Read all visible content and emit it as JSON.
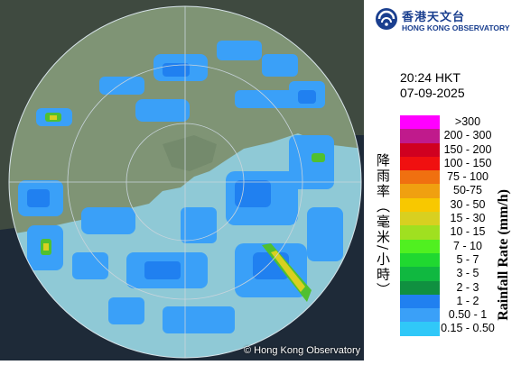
{
  "organization": {
    "name_cn": "香港天文台",
    "name_en": "HONG KONG OBSERVATORY"
  },
  "timestamp": {
    "time": "20:24 HKT",
    "date": "07-09-2025"
  },
  "legend": {
    "title_cn": "降雨率（毫米/小時）",
    "title_en": "Rainfall Rate (mm/h)",
    "bins": [
      {
        "label": ">300",
        "color": "#ff00ff"
      },
      {
        "label": "200 - 300",
        "color": "#c01a8c"
      },
      {
        "label": "150 - 200",
        "color": "#d00020"
      },
      {
        "label": "100 - 150",
        "color": "#f01010"
      },
      {
        "label": "75 - 100",
        "color": "#f07010"
      },
      {
        "label": "50-75",
        "color": "#f0a010"
      },
      {
        "label": "30 - 50",
        "color": "#f8c800"
      },
      {
        "label": "15 - 30",
        "color": "#d8d020"
      },
      {
        "label": "10 - 15",
        "color": "#a0e020"
      },
      {
        "label": "7 - 10",
        "color": "#50f020"
      },
      {
        "label": "5 - 7",
        "color": "#20d830"
      },
      {
        "label": "3 - 5",
        "color": "#10b840"
      },
      {
        "label": "2 - 3",
        "color": "#109040"
      },
      {
        "label": "1 - 2",
        "color": "#2080f0"
      },
      {
        "label": "0.50 - 1",
        "color": "#3aa0f8"
      },
      {
        "label": "0.15 - 0.50",
        "color": "#30c8f8"
      }
    ]
  },
  "copyright": "© Hong Kong Observatory"
}
